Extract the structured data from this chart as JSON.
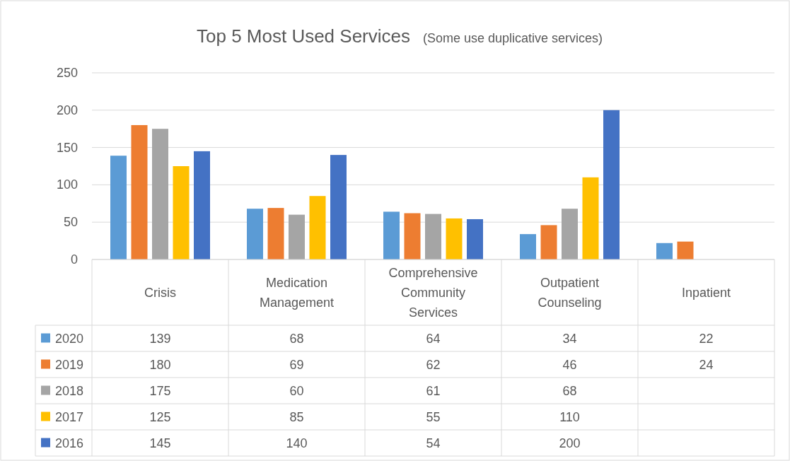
{
  "chart_data": {
    "type": "bar",
    "title": "Top 5 Most Used Services",
    "subtitle": "(Some use duplicative services)",
    "categories": [
      "Crisis",
      "Medication Management",
      "Comprehensive Community Services",
      "Outpatient Counseling",
      "Inpatient"
    ],
    "series": [
      {
        "name": "2020",
        "color": "#5b9bd5",
        "values": [
          139,
          68,
          64,
          34,
          22
        ]
      },
      {
        "name": "2019",
        "color": "#ed7d31",
        "values": [
          180,
          69,
          62,
          46,
          24
        ]
      },
      {
        "name": "2018",
        "color": "#a5a5a5",
        "values": [
          175,
          60,
          61,
          68,
          null
        ]
      },
      {
        "name": "2017",
        "color": "#ffc000",
        "values": [
          125,
          85,
          55,
          110,
          null
        ]
      },
      {
        "name": "2016",
        "color": "#4472c4",
        "values": [
          145,
          140,
          54,
          200,
          null
        ]
      }
    ],
    "ylim": [
      0,
      250
    ],
    "yticks": [
      0,
      50,
      100,
      150,
      200,
      250
    ],
    "grid": "y",
    "legend": "bottom",
    "data_labels": true
  }
}
